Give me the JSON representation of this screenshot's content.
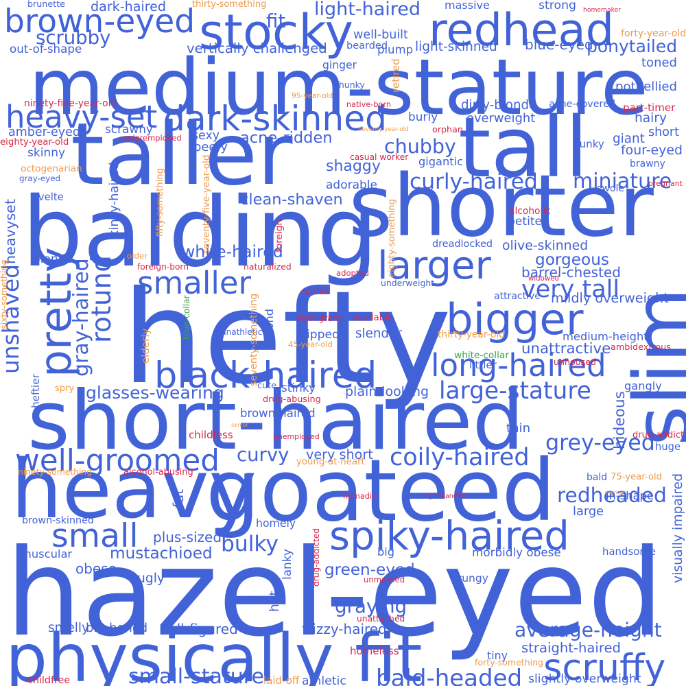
{
  "colors": {
    "blue": "#4262d8",
    "orange": "#ee9a4a",
    "red": "#d8284a",
    "green": "#35a845"
  },
  "words": [
    {
      "text": "hazel-eyed",
      "color": "blue"
    },
    {
      "text": "hefty",
      "color": "blue"
    },
    {
      "text": "medium-stature",
      "color": "blue"
    },
    {
      "text": "taller",
      "color": "blue"
    },
    {
      "text": "balding",
      "color": "blue"
    },
    {
      "text": "shorter",
      "color": "blue"
    },
    {
      "text": "short-haired",
      "color": "blue"
    },
    {
      "text": "goateed",
      "color": "blue"
    },
    {
      "text": "tall",
      "color": "blue"
    },
    {
      "text": "slim",
      "color": "blue"
    },
    {
      "text": "heavy",
      "color": "blue"
    },
    {
      "text": "physically fit",
      "color": "blue"
    },
    {
      "text": "stocky",
      "color": "blue"
    },
    {
      "text": "redhead",
      "color": "blue"
    },
    {
      "text": "brown-eyed",
      "color": "blue"
    },
    {
      "text": "dark-skinned",
      "color": "blue"
    },
    {
      "text": "bigger",
      "color": "blue"
    },
    {
      "text": "larger",
      "color": "blue"
    },
    {
      "text": "black-haired",
      "color": "blue"
    },
    {
      "text": "spiky-haired",
      "color": "blue"
    },
    {
      "text": "scruffy",
      "color": "blue"
    },
    {
      "text": "well-groomed",
      "color": "blue"
    },
    {
      "text": "long-haired",
      "color": "blue"
    },
    {
      "text": "heavy-set",
      "color": "blue"
    },
    {
      "text": "smaller",
      "color": "blue"
    },
    {
      "text": "small",
      "color": "blue"
    },
    {
      "text": "pretty",
      "color": "blue"
    },
    {
      "text": "rotund",
      "color": "blue"
    },
    {
      "text": "unshaved",
      "color": "blue"
    },
    {
      "text": "large-stature",
      "color": "blue"
    },
    {
      "text": "coily-haired",
      "color": "blue"
    },
    {
      "text": "grey-eyed",
      "color": "blue"
    },
    {
      "text": "bald-headed",
      "color": "blue"
    },
    {
      "text": "curly-haired",
      "color": "blue"
    },
    {
      "text": "average-height",
      "color": "blue"
    },
    {
      "text": "redheaded",
      "color": "blue"
    },
    {
      "text": "chubby",
      "color": "blue"
    },
    {
      "text": "miniature",
      "color": "blue"
    },
    {
      "text": "very tall",
      "color": "blue"
    },
    {
      "text": "graying",
      "color": "blue"
    },
    {
      "text": "small-stature",
      "color": "blue"
    },
    {
      "text": "scrubby",
      "color": "blue"
    },
    {
      "text": "ponytailed",
      "color": "blue"
    },
    {
      "text": "white-haired",
      "color": "blue"
    },
    {
      "text": "curvy",
      "color": "blue"
    },
    {
      "text": "bulky",
      "color": "blue"
    },
    {
      "text": "shaggy",
      "color": "blue"
    },
    {
      "text": "clean-shaven",
      "color": "blue"
    },
    {
      "text": "glasses-wearing",
      "color": "blue"
    },
    {
      "text": "acne-ridden",
      "color": "blue"
    },
    {
      "text": "mustachioed",
      "color": "blue"
    },
    {
      "text": "gorgeous",
      "color": "blue"
    },
    {
      "text": "green-eyed",
      "color": "blue"
    },
    {
      "text": "gray-haired",
      "color": "blue"
    },
    {
      "text": "heavyset",
      "color": "blue"
    },
    {
      "text": "light-haired",
      "color": "blue"
    },
    {
      "text": "hideous",
      "color": "blue"
    },
    {
      "text": "dark-haired",
      "color": "blue"
    },
    {
      "text": "fit",
      "color": "blue"
    },
    {
      "text": "massive",
      "color": "blue"
    },
    {
      "text": "strong",
      "color": "blue"
    },
    {
      "text": "potbellied",
      "color": "blue"
    },
    {
      "text": "toned",
      "color": "blue"
    },
    {
      "text": "well-built",
      "color": "blue"
    },
    {
      "text": "plump",
      "color": "blue"
    },
    {
      "text": "bearded",
      "color": "blue"
    },
    {
      "text": "vertically challenged",
      "color": "blue"
    },
    {
      "text": "light-skinned",
      "color": "blue"
    },
    {
      "text": "blue-eyed",
      "color": "blue"
    },
    {
      "text": "ginger",
      "color": "blue"
    },
    {
      "text": "chunky",
      "color": "blue"
    },
    {
      "text": "dirty-blonde",
      "color": "blue"
    },
    {
      "text": "acne-covered",
      "color": "blue"
    },
    {
      "text": "overweight",
      "color": "blue"
    },
    {
      "text": "burly",
      "color": "blue"
    },
    {
      "text": "hairy",
      "color": "blue"
    },
    {
      "text": "short",
      "color": "blue"
    },
    {
      "text": "giant",
      "color": "blue"
    },
    {
      "text": "sexy",
      "color": "blue"
    },
    {
      "text": "beefy",
      "color": "blue"
    },
    {
      "text": "scrawny",
      "color": "blue"
    },
    {
      "text": "amber-eyed",
      "color": "blue"
    },
    {
      "text": "skinny",
      "color": "blue"
    },
    {
      "text": "gray-eyed",
      "color": "blue"
    },
    {
      "text": "svelte",
      "color": "blue"
    },
    {
      "text": "hunky",
      "color": "blue"
    },
    {
      "text": "four-eyed",
      "color": "blue"
    },
    {
      "text": "brawny",
      "color": "blue"
    },
    {
      "text": "gigantic",
      "color": "blue"
    },
    {
      "text": "adorable",
      "color": "blue"
    },
    {
      "text": "swole",
      "color": "blue"
    },
    {
      "text": "petite",
      "color": "blue"
    },
    {
      "text": "dreadlocked",
      "color": "blue"
    },
    {
      "text": "olive-skinned",
      "color": "blue"
    },
    {
      "text": "barrel-chested",
      "color": "blue"
    },
    {
      "text": "blonde",
      "color": "blue"
    },
    {
      "text": "underweight",
      "color": "blue"
    },
    {
      "text": "attractive",
      "color": "blue"
    },
    {
      "text": "mildly overweight",
      "color": "blue"
    },
    {
      "text": "medium-height",
      "color": "blue"
    },
    {
      "text": "unattractive",
      "color": "blue"
    },
    {
      "text": "littler",
      "color": "blue"
    },
    {
      "text": "ripped",
      "color": "blue"
    },
    {
      "text": "slender",
      "color": "blue"
    },
    {
      "text": "unathletic",
      "color": "blue"
    },
    {
      "text": "blond",
      "color": "blue"
    },
    {
      "text": "cute",
      "color": "blue"
    },
    {
      "text": "stinky",
      "color": "blue"
    },
    {
      "text": "plain-looking",
      "color": "blue"
    },
    {
      "text": "brown-haired",
      "color": "blue"
    },
    {
      "text": "heftier",
      "color": "blue"
    },
    {
      "text": "gangly",
      "color": "blue"
    },
    {
      "text": "thin",
      "color": "blue"
    },
    {
      "text": "huge",
      "color": "blue"
    },
    {
      "text": "very short",
      "color": "blue"
    },
    {
      "text": "bald",
      "color": "blue"
    },
    {
      "text": "in-shape",
      "color": "blue"
    },
    {
      "text": "large",
      "color": "blue"
    },
    {
      "text": "visually impaired",
      "color": "blue"
    },
    {
      "text": "brown-skinned",
      "color": "blue"
    },
    {
      "text": "homely",
      "color": "blue"
    },
    {
      "text": "fat",
      "color": "blue"
    },
    {
      "text": "plus-sized",
      "color": "blue"
    },
    {
      "text": "obese",
      "color": "blue"
    },
    {
      "text": "muscular",
      "color": "blue"
    },
    {
      "text": "morbidly obese",
      "color": "blue"
    },
    {
      "text": "handsome",
      "color": "blue"
    },
    {
      "text": "big",
      "color": "blue"
    },
    {
      "text": "ugly",
      "color": "blue"
    },
    {
      "text": "lanky",
      "color": "blue"
    },
    {
      "text": "grungy",
      "color": "blue"
    },
    {
      "text": "hot",
      "color": "blue"
    },
    {
      "text": "smelly",
      "color": "blue"
    },
    {
      "text": "big-boned",
      "color": "blue"
    },
    {
      "text": "full-figured",
      "color": "blue"
    },
    {
      "text": "frizzy-haired",
      "color": "blue"
    },
    {
      "text": "straight-haired",
      "color": "blue"
    },
    {
      "text": "tiny",
      "color": "blue"
    },
    {
      "text": "slightly overweight",
      "color": "blue"
    },
    {
      "text": "brunette",
      "color": "blue"
    },
    {
      "text": "out-of-shape",
      "color": "blue"
    },
    {
      "text": "kinky-haired",
      "color": "blue"
    },
    {
      "text": "athletic",
      "color": "blue"
    },
    {
      "text": "thirty-something",
      "color": "orange"
    },
    {
      "text": "homemaker",
      "color": "red"
    },
    {
      "text": "forty-year-old",
      "color": "orange"
    },
    {
      "text": "ninety-five-year-old",
      "color": "red"
    },
    {
      "text": "eighty-year-old",
      "color": "red"
    },
    {
      "text": "95-year-old",
      "color": "orange"
    },
    {
      "text": "native-born",
      "color": "red"
    },
    {
      "text": "retired",
      "color": "orange"
    },
    {
      "text": "part-timer",
      "color": "red"
    },
    {
      "text": "seventy-year-old",
      "color": "orange"
    },
    {
      "text": "orphan",
      "color": "red"
    },
    {
      "text": "underemployed",
      "color": "red"
    },
    {
      "text": "octogenarian",
      "color": "orange"
    },
    {
      "text": "casual worker",
      "color": "red"
    },
    {
      "text": "pregnant",
      "color": "red"
    },
    {
      "text": "fifty-something",
      "color": "orange"
    },
    {
      "text": "seventy-five-year-old",
      "color": "orange"
    },
    {
      "text": "eighty-something",
      "color": "orange"
    },
    {
      "text": "alcoholic",
      "color": "red"
    },
    {
      "text": "foreign",
      "color": "red"
    },
    {
      "text": "foreign-born",
      "color": "red"
    },
    {
      "text": "older",
      "color": "orange"
    },
    {
      "text": "naturalized",
      "color": "red"
    },
    {
      "text": "adopted",
      "color": "red"
    },
    {
      "text": "widowed",
      "color": "red"
    },
    {
      "text": "sixty-something",
      "color": "orange"
    },
    {
      "text": "native",
      "color": "red"
    },
    {
      "text": "blue-collar",
      "color": "green"
    },
    {
      "text": "immigrant",
      "color": "red"
    },
    {
      "text": "available",
      "color": "red"
    },
    {
      "text": "seventy-something",
      "color": "orange"
    },
    {
      "text": "elderly",
      "color": "orange"
    },
    {
      "text": "45-year-old",
      "color": "orange"
    },
    {
      "text": "thirty-year-old",
      "color": "orange"
    },
    {
      "text": "white-collar",
      "color": "green"
    },
    {
      "text": "ambidextrous",
      "color": "red"
    },
    {
      "text": "spry",
      "color": "orange"
    },
    {
      "text": "drug-abusing",
      "color": "red"
    },
    {
      "text": "unhoused",
      "color": "red"
    },
    {
      "text": "senior",
      "color": "orange"
    },
    {
      "text": "childless",
      "color": "red"
    },
    {
      "text": "drug-addict",
      "color": "red"
    },
    {
      "text": "unemployed",
      "color": "red"
    },
    {
      "text": "young-at-heart",
      "color": "orange"
    },
    {
      "text": "ninety-something",
      "color": "orange"
    },
    {
      "text": "alcohol-abusing",
      "color": "red"
    },
    {
      "text": "75-year-old",
      "color": "orange"
    },
    {
      "text": "younger",
      "color": "orange"
    },
    {
      "text": "nomadic",
      "color": "red"
    },
    {
      "text": "right-handed",
      "color": "red"
    },
    {
      "text": "drug-addicted",
      "color": "red"
    },
    {
      "text": "unmarried",
      "color": "red"
    },
    {
      "text": "unattached",
      "color": "red"
    },
    {
      "text": "homeless",
      "color": "red"
    },
    {
      "text": "forty-something",
      "color": "orange"
    },
    {
      "text": "childfree",
      "color": "red"
    },
    {
      "text": "laid-off",
      "color": "orange"
    }
  ]
}
